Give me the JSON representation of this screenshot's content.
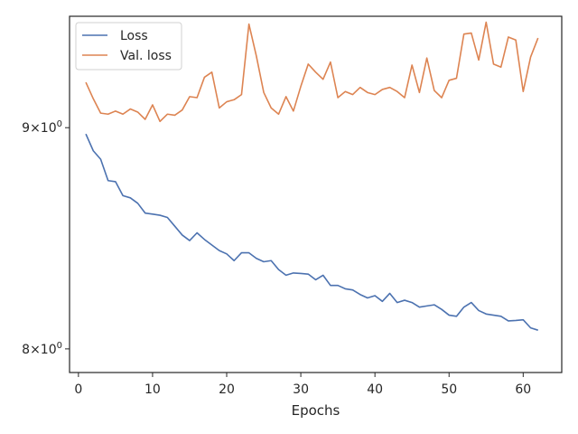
{
  "chart_data": {
    "type": "line",
    "title": "",
    "xlabel": "Epochs",
    "ylabel": "",
    "yscale": "log",
    "xlim": [
      -1.2,
      65.2
    ],
    "ylim": [
      7.9,
      9.55
    ],
    "xticks": [
      0,
      10,
      20,
      30,
      40,
      50,
      60
    ],
    "xtick_labels": [
      "0",
      "10",
      "20",
      "30",
      "40",
      "50",
      "60"
    ],
    "yticks": [
      8,
      9
    ],
    "ytick_labels": [
      {
        "mantissa": "8",
        "times": "×",
        "base": "10",
        "exp": "0"
      },
      {
        "mantissa": "9",
        "times": "×",
        "base": "10",
        "exp": "0"
      }
    ],
    "grid": false,
    "legend": {
      "placement": "upper-left",
      "entries": [
        "Loss",
        "Val. loss"
      ]
    },
    "series": [
      {
        "name": "Loss",
        "color": "#4c72b0",
        "x": [
          1,
          2,
          3,
          4,
          5,
          6,
          7,
          8,
          9,
          10,
          11,
          12,
          13,
          14,
          15,
          16,
          17,
          18,
          19,
          20,
          21,
          22,
          23,
          24,
          25,
          26,
          27,
          28,
          29,
          30,
          31,
          32,
          33,
          34,
          35,
          36,
          37,
          38,
          39,
          40,
          41,
          42,
          43,
          44,
          45,
          46,
          47,
          48,
          49,
          50,
          51,
          52,
          53,
          54,
          55,
          56,
          57,
          58,
          59,
          60,
          61,
          62
        ],
        "values": [
          8.97,
          8.89,
          8.85,
          8.75,
          8.745,
          8.68,
          8.67,
          8.645,
          8.6,
          8.595,
          8.59,
          8.58,
          8.54,
          8.5,
          8.475,
          8.51,
          8.48,
          8.455,
          8.43,
          8.415,
          8.385,
          8.42,
          8.42,
          8.395,
          8.38,
          8.385,
          8.345,
          8.32,
          8.33,
          8.328,
          8.325,
          8.3,
          8.32,
          8.275,
          8.275,
          8.26,
          8.255,
          8.235,
          8.22,
          8.23,
          8.205,
          8.24,
          8.2,
          8.21,
          8.2,
          8.18,
          8.185,
          8.19,
          8.17,
          8.145,
          8.14,
          8.18,
          8.2,
          8.165,
          8.15,
          8.145,
          8.14,
          8.12,
          8.122,
          8.125,
          8.09,
          8.08
        ]
      },
      {
        "name": "Val. loss",
        "color": "#dd8452",
        "x": [
          1,
          2,
          3,
          4,
          5,
          6,
          7,
          8,
          9,
          10,
          11,
          12,
          13,
          14,
          15,
          16,
          17,
          18,
          19,
          20,
          21,
          22,
          23,
          24,
          25,
          26,
          27,
          28,
          29,
          30,
          31,
          32,
          33,
          34,
          35,
          36,
          37,
          38,
          39,
          40,
          41,
          42,
          43,
          44,
          45,
          46,
          47,
          48,
          49,
          50,
          51,
          52,
          53,
          54,
          55,
          56,
          57,
          58,
          59,
          60,
          61,
          62
        ],
        "values": [
          9.22,
          9.14,
          9.07,
          9.065,
          9.08,
          9.065,
          9.09,
          9.075,
          9.04,
          9.11,
          9.03,
          9.065,
          9.06,
          9.085,
          9.15,
          9.145,
          9.245,
          9.27,
          9.095,
          9.125,
          9.135,
          9.16,
          9.51,
          9.35,
          9.17,
          9.095,
          9.065,
          9.15,
          9.08,
          9.2,
          9.31,
          9.27,
          9.235,
          9.32,
          9.145,
          9.175,
          9.16,
          9.195,
          9.17,
          9.16,
          9.185,
          9.195,
          9.175,
          9.145,
          9.305,
          9.17,
          9.34,
          9.18,
          9.145,
          9.23,
          9.24,
          9.46,
          9.465,
          9.33,
          9.52,
          9.31,
          9.295,
          9.445,
          9.43,
          9.175,
          9.345,
          9.44
        ]
      }
    ]
  }
}
